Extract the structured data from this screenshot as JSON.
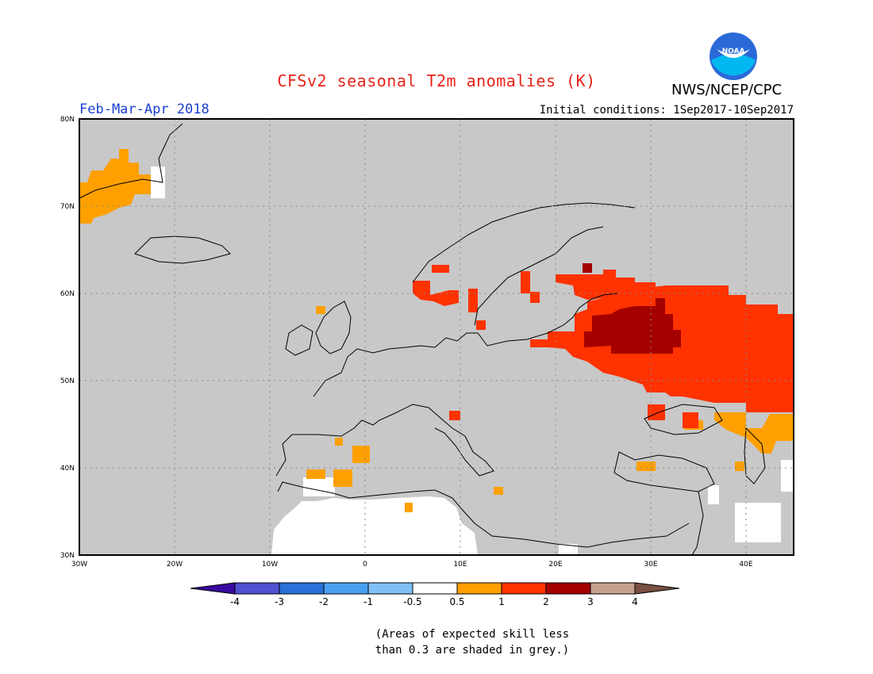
{
  "header": {
    "title": "CFSv2 seasonal T2m anomalies (K)",
    "agency": "NWS/NCEP/CPC",
    "logo_text": "NOAA",
    "season": "Feb-Mar-Apr 2018",
    "initial_conditions": "Initial conditions: 1Sep2017-10Sep2017"
  },
  "map": {
    "lon_range": [
      -30,
      45
    ],
    "lat_range": [
      30,
      80
    ],
    "lat_ticks": [
      "30N",
      "40N",
      "50N",
      "60N",
      "70N",
      "80N"
    ],
    "lon_ticks": [
      "30W",
      "20W",
      "10W",
      "0",
      "10E",
      "20E",
      "30E",
      "40E"
    ],
    "grey_meaning": "skill less than 0.3",
    "colors": {
      "grey": "#c8c8c8",
      "orange": "#ffa000",
      "red_orange": "#ff3200",
      "dark_red": "#a50000"
    }
  },
  "legend": {
    "labels": [
      "-4",
      "-3",
      "-2",
      "-1",
      "-0.5",
      "0.5",
      "1",
      "2",
      "3",
      "4"
    ],
    "colors": [
      "#3a0aa0",
      "#5050d0",
      "#2a70d8",
      "#4aa0f0",
      "#80c0f8",
      "#ffffff",
      "#ffa000",
      "#ff3200",
      "#a50000",
      "#c8a090",
      "#7a5040"
    ]
  },
  "footnote": {
    "line1": "(Areas of expected skill less",
    "line2": "than 0.3 are shaded in grey.)"
  }
}
